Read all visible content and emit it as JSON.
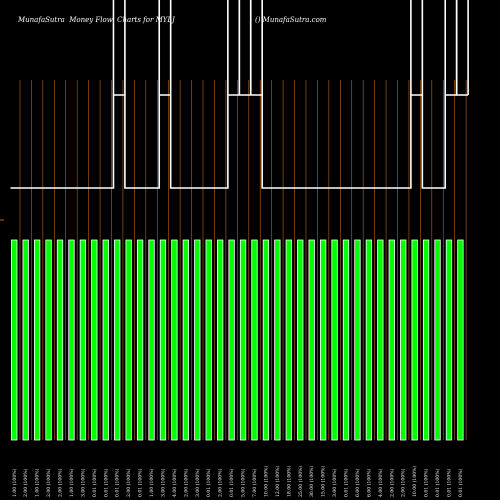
{
  "header": {
    "left_text": "MunafaSutra  Money Flow  Charts for MYLJ",
    "right_text": "() MunafaSutra.com"
  },
  "colors": {
    "background": "#000000",
    "bar_fill": "#00ff00",
    "bar_stroke": "#ffffff",
    "gridline": "#b8641e",
    "flow_line": "#ffffff",
    "text": "#ffffff"
  },
  "chart_data": {
    "type": "bar",
    "title": "",
    "xlabel": "",
    "ylabel": "",
    "categories": [
      "1.00 (100%)",
      "2.00 (100%)",
      "1.00 (100%)",
      "2.00 (100%)",
      "2.00 (100%)",
      "1.00 (100%)",
      "3.00 (100%)",
      "0.01 (100%)",
      "0.01 (100%)",
      "0.01 (100%)",
      "2.00 (100%)",
      "0.01 (100%)",
      "1.00 (100%)",
      "3.00 (100%)",
      "4.00 (100%)",
      "2.00 (100%)",
      "3.00 (100%)",
      "0.01 (100%)",
      "2.00 (100%)",
      "0.01 (100%)",
      "5.00 (100%)",
      "7.00 (100%)",
      "10.00 (100%)",
      "12.00 (100%)",
      "18.00 (100%)",
      "25.00 (100%)",
      "30.00 (100%)",
      "15.00 (100%)",
      "3.00 (100%)",
      "0.01 (100%)",
      "6.00 (100%)",
      "6.00 (100%)",
      "4.00 (100%)",
      "2.00 (100%)",
      "2.00 (100%)",
      "10.00 (100%)",
      "0.01 (100%)",
      "0.01 (100%)",
      "0.01 (100%)",
      "0.01 (100%)"
    ],
    "values": [
      1,
      1,
      1,
      1,
      1,
      1,
      1,
      1,
      1,
      1,
      1,
      1,
      1,
      1,
      1,
      1,
      1,
      1,
      1,
      1,
      1,
      1,
      1,
      1,
      1,
      1,
      1,
      1,
      1,
      1,
      1,
      1,
      1,
      1,
      1,
      1,
      1,
      1,
      1,
      1
    ],
    "flow_line": [
      0,
      0,
      0,
      0,
      0,
      0,
      0,
      0,
      0,
      1,
      0,
      0,
      0,
      1,
      0,
      0,
      0,
      0,
      0,
      1,
      1,
      1,
      0,
      0,
      0,
      0,
      0,
      0,
      0,
      0,
      0,
      0,
      0,
      0,
      0,
      1,
      0,
      0,
      1,
      1
    ],
    "grid": true
  }
}
